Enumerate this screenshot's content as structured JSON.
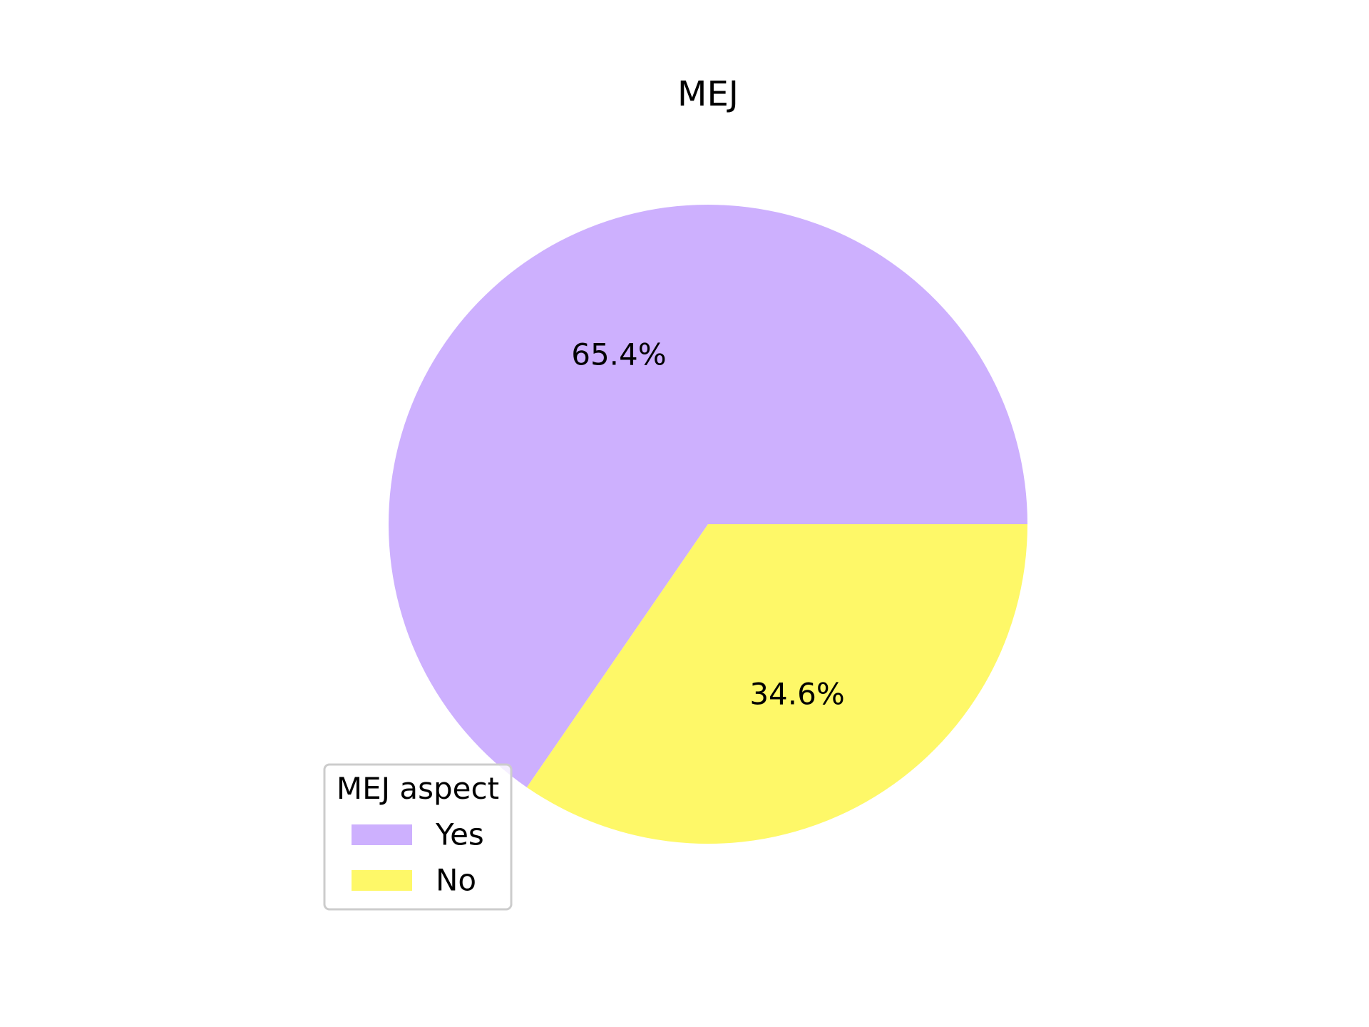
{
  "chart_data": {
    "type": "pie",
    "title": "MEJ",
    "slices": [
      {
        "label": "Yes",
        "value": 65.4,
        "display": "65.4%",
        "color": "#cdb0fe"
      },
      {
        "label": "No",
        "value": 34.6,
        "display": "34.6%",
        "color": "#fef868"
      }
    ],
    "start_angle_deg": 0,
    "direction": "counterclockwise",
    "legend": {
      "title": "MEJ aspect",
      "placement": "lower-left",
      "entries": [
        "Yes",
        "No"
      ]
    }
  }
}
